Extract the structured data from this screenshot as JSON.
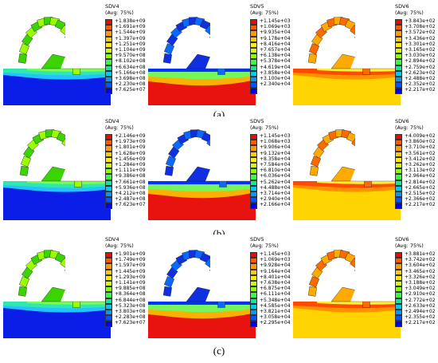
{
  "figure": {
    "rows": [
      {
        "label": "(a)",
        "panels": [
          {
            "var": "SDV4",
            "avg": "(Avg: 75%)",
            "ticks": [
              "+1.838e+09",
              "+1.691e+09",
              "+1.544e+09",
              "+1.397e+09",
              "+1.251e+09",
              "+1.104e+09",
              "+9.570e+08",
              "+8.102e+08",
              "+6.634e+08",
              "+5.166e+08",
              "+3.698e+08",
              "+2.230e+08",
              "+7.625e+07"
            ]
          },
          {
            "var": "SDV5",
            "avg": "(Avg: 75%)",
            "ticks": [
              "+1.145e+03",
              "+1.069e+03",
              "+9.935e+04",
              "+9.178e+04",
              "+8.416e+04",
              "+7.657e+04",
              "+6.138e+04",
              "+5.378e+04",
              "+4.619e+04",
              "+3.858e+04",
              "+3.100e+04",
              "+2.340e+04",
              ""
            ]
          },
          {
            "var": "SDV6",
            "avg": "(Avg: 75%)",
            "ticks": [
              "+3.843e+02",
              "+3.708e+02",
              "+3.572e+02",
              "+3.436e+02",
              "+3.301e+02",
              "+3.165e+02",
              "+3.030e+02",
              "+2.894e+02",
              "+2.759e+02",
              "+2.623e+02",
              "+2.488e+02",
              "+2.352e+02",
              "+2.217e+02"
            ]
          }
        ]
      },
      {
        "label": "(b)",
        "panels": [
          {
            "var": "SDV4",
            "avg": "(Avg: 75%)",
            "ticks": [
              "+2.146e+09",
              "+1.973e+09",
              "+1.801e+09",
              "+1.628e+09",
              "+1.456e+09",
              "+1.284e+09",
              "+1.111e+09",
              "+9.386e+08",
              "+7.661e+08",
              "+5.936e+08",
              "+4.212e+08",
              "+2.487e+08",
              "+7.623e+07"
            ]
          },
          {
            "var": "SDV5",
            "avg": "(Avg: 75%)",
            "ticks": [
              "+1.145e+03",
              "+1.068e+03",
              "+9.906e+04",
              "+9.132e+04",
              "+8.358e+04",
              "+7.584e+04",
              "+6.810e+04",
              "+6.036e+04",
              "+5.262e+04",
              "+4.488e+04",
              "+3.714e+04",
              "+2.940e+04",
              "+2.166e+04"
            ]
          },
          {
            "var": "SDV6",
            "avg": "(Avg: 75%)",
            "ticks": [
              "+4.009e+02",
              "+3.860e+02",
              "+3.710e+02",
              "+3.561e+02",
              "+3.412e+02",
              "+3.262e+02",
              "+3.113e+02",
              "+2.964e+02",
              "+2.814e+02",
              "+2.665e+02",
              "+2.515e+02",
              "+2.366e+02",
              "+2.217e+02"
            ]
          }
        ]
      },
      {
        "label": "(c)",
        "panels": [
          {
            "var": "SDV4",
            "avg": "(Avg: 75%)",
            "ticks": [
              "+1.901e+09",
              "+1.749e+09",
              "+1.597e+09",
              "+1.445e+09",
              "+1.293e+09",
              "+1.141e+09",
              "+9.885e+08",
              "+8.364e+08",
              "+6.844e+08",
              "+5.323e+08",
              "+3.803e+08",
              "+2.283e+08",
              "+7.623e+07"
            ]
          },
          {
            "var": "SDV5",
            "avg": "(Avg: 75%)",
            "ticks": [
              "+1.145e+03",
              "+1.069e+03",
              "+9.928e+04",
              "+9.164e+04",
              "+8.401e+04",
              "+7.638e+04",
              "+6.875e+04",
              "+6.111e+04",
              "+5.348e+04",
              "+4.585e+04",
              "+3.821e+04",
              "+3.058e+04",
              "+2.295e+04"
            ]
          },
          {
            "var": "SDV6",
            "avg": "(Avg: 75%)",
            "ticks": [
              "+3.881e+02",
              "+3.742e+02",
              "+3.604e+02",
              "+3.465e+02",
              "+3.326e+02",
              "+3.188e+02",
              "+3.049e+02",
              "+2.910e+02",
              "+2.772e+02",
              "+2.633e+02",
              "+2.494e+02",
              "+2.355e+02",
              "+2.217e+02"
            ]
          }
        ]
      }
    ],
    "legend_colors": [
      "#ff0000",
      "#ff5a00",
      "#ff9900",
      "#ffcc00",
      "#ffee00",
      "#ccff00",
      "#88ff00",
      "#33ff44",
      "#00ee99",
      "#00ccee",
      "#0099ff",
      "#0055ff",
      "#0000ff"
    ]
  }
}
